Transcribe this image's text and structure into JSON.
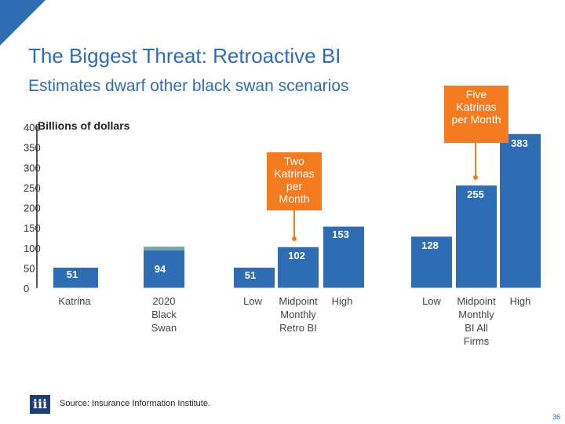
{
  "slide": {
    "title": "The Biggest Threat: Retroactive BI",
    "subtitle": "Estimates dwarf other black swan scenarios",
    "source": "Source: Insurance Information Institute.",
    "logo_text": "iii",
    "page_number": "36"
  },
  "colors": {
    "bar": "#2e6cb3",
    "teal": "#6fa8a6",
    "accent": "#f47b20",
    "title": "#2e6cb3"
  },
  "chart_data": {
    "type": "bar",
    "ylabel": "Billions of dollars",
    "ylim": [
      0,
      400
    ],
    "yticks": [
      0,
      50,
      100,
      150,
      200,
      250,
      300,
      350,
      400
    ],
    "categories": [
      "Katrina",
      "2020 Black Swan",
      "Low",
      "Midpoint Monthly Retro BI",
      "High",
      "Low",
      "Midpoint Monthly BI All Firms",
      "High"
    ],
    "values": [
      51,
      94,
      51,
      102,
      153,
      128,
      255,
      383
    ],
    "stacked_top": [
      0,
      9,
      0,
      0,
      0,
      0,
      0,
      0
    ],
    "data_labels": [
      "51",
      "94",
      "51",
      "102",
      "153",
      "128",
      "255",
      "383"
    ],
    "callouts": [
      {
        "text": "Two Katrinas per Month",
        "bar_index": 3
      },
      {
        "text": "Five Katrinas per Month",
        "bar_index": 6
      }
    ]
  }
}
